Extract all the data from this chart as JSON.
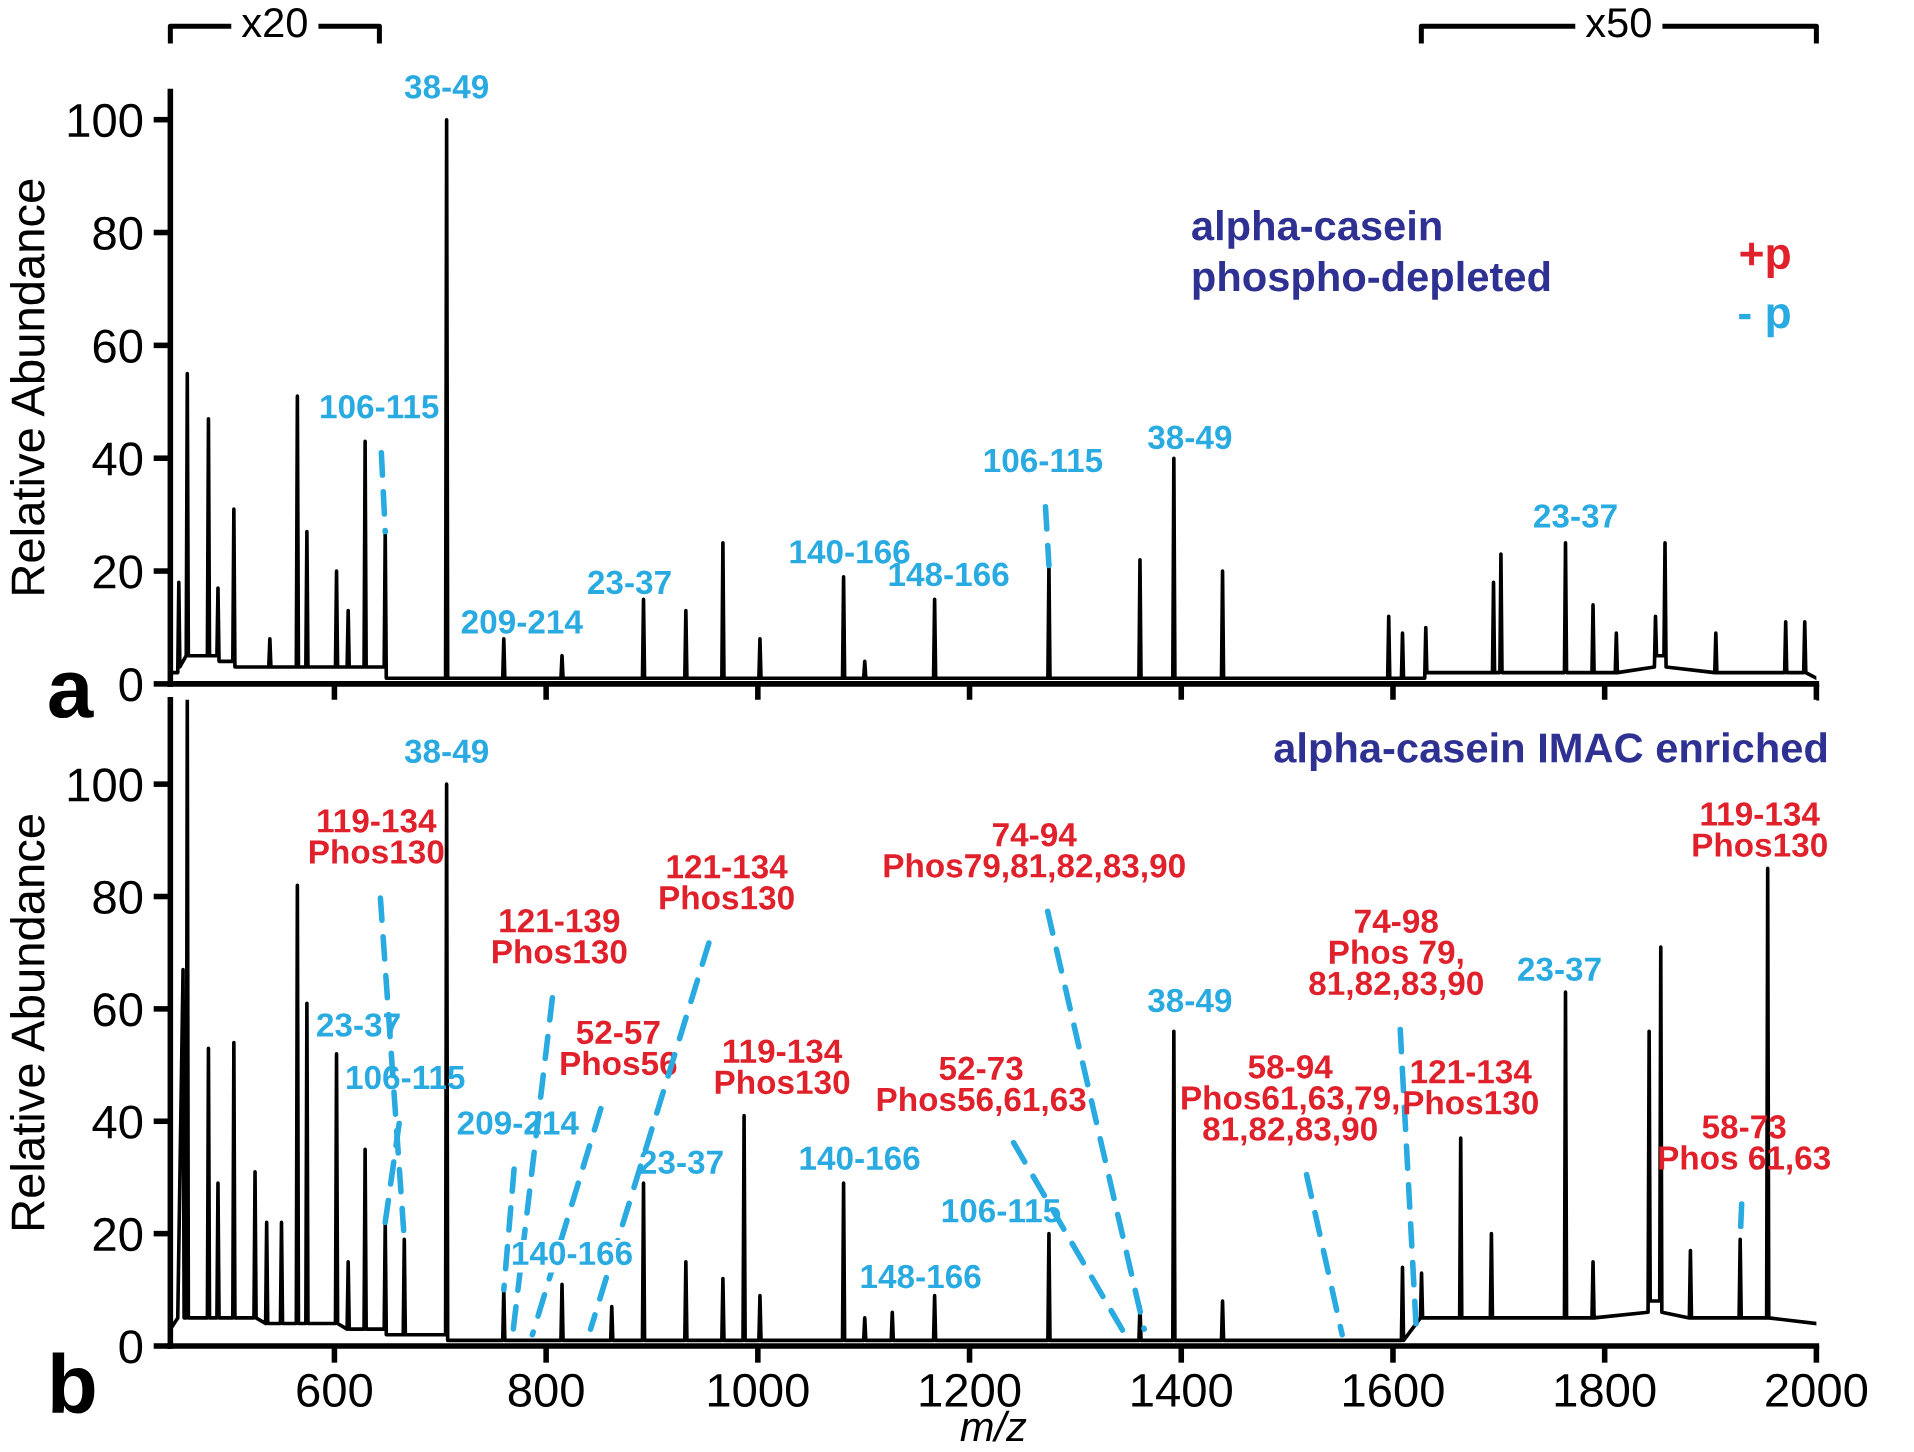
{
  "chart_data": [
    {
      "type": "line",
      "title": "alpha-casein\nphospho-depleted",
      "ylabel": "Relative Abundance",
      "tick_labels": "y",
      "xlim": [
        445,
        2000
      ],
      "ylim": [
        0,
        105
      ],
      "xticks": [
        600,
        800,
        1000,
        1200,
        1400,
        1600,
        1800,
        2000
      ],
      "yticks": [
        0,
        20,
        40,
        60,
        80,
        100
      ],
      "x": [
        445,
        452,
        453,
        454,
        460,
        461,
        462,
        480,
        481,
        482,
        489,
        490,
        491,
        504,
        505,
        506,
        538,
        539,
        540,
        564,
        565,
        566,
        573,
        574,
        575,
        601,
        602,
        603,
        612,
        613,
        614,
        628,
        629,
        630,
        647,
        648,
        649,
        705,
        706,
        707,
        759,
        760,
        761,
        814,
        815,
        816,
        891,
        892,
        893,
        931,
        932,
        933,
        966,
        967,
        968,
        1001,
        1002,
        1003,
        1080,
        1081,
        1082,
        1100,
        1101,
        1102,
        1166,
        1167,
        1168,
        1274,
        1275,
        1276,
        1360,
        1361,
        1362,
        1392,
        1393,
        1394,
        1438,
        1439,
        1440,
        1595,
        1596,
        1597,
        1608,
        1609,
        1610,
        1630,
        1631,
        1632,
        1694,
        1695,
        1696,
        1701,
        1702,
        1703,
        1762,
        1763,
        1764,
        1788,
        1789,
        1790,
        1810,
        1811,
        1812,
        1847,
        1848,
        1849,
        1856,
        1857,
        1858,
        1904,
        1905,
        1906,
        1970,
        1971,
        1972,
        1988,
        1989,
        1990,
        2000
      ],
      "series": [
        {
          "color": "#000000",
          "values": [
            2,
            2,
            18,
            3,
            5,
            55,
            5,
            5,
            47,
            5,
            5,
            17,
            4,
            4,
            31,
            3,
            3,
            8,
            3,
            3,
            51,
            3,
            3,
            27,
            3,
            3,
            20,
            3,
            3,
            13,
            3,
            3,
            43,
            3,
            3,
            27,
            1,
            1,
            100,
            1,
            1,
            8,
            1,
            1,
            5,
            1,
            1,
            15,
            1,
            1,
            13,
            1,
            1,
            25,
            1,
            1,
            8,
            1,
            1,
            19,
            1,
            1,
            4,
            1,
            1,
            15,
            1,
            1,
            21,
            1,
            1,
            22,
            1,
            1,
            40,
            1,
            1,
            20,
            1,
            1,
            12,
            1,
            1,
            9,
            1,
            1,
            10,
            2,
            2,
            18,
            2,
            2,
            23,
            2,
            2,
            25,
            2,
            2,
            14,
            2,
            2,
            9,
            2,
            3,
            12,
            5,
            5,
            25,
            3,
            2,
            9,
            2,
            2,
            11,
            2,
            2,
            11,
            2,
            1
          ]
        }
      ],
      "annotations": [
        {
          "text": "38-49",
          "x": 706,
          "y": 100
        },
        {
          "text": "106-115",
          "x": 648,
          "y": 27
        },
        {
          "text": "209-214",
          "x": 760,
          "y": 8
        },
        {
          "text": "23-37",
          "x": 892,
          "y": 15
        },
        {
          "text": "140-166",
          "x": 1081,
          "y": 19
        },
        {
          "text": "148-166",
          "x": 1167,
          "y": 15
        },
        {
          "text": "106-115",
          "x": 1275,
          "y": 21
        },
        {
          "text": "38-49",
          "x": 1393,
          "y": 40
        },
        {
          "text": "23-37",
          "x": 1763,
          "y": 25
        },
        "+p",
        "- p",
        "a",
        "x20",
        "x50"
      ]
    },
    {
      "type": "line",
      "title": "alpha-casein IMAC enriched",
      "xlabel": "m/z",
      "ylabel": "Relative Abundance",
      "xlim": [
        445,
        2000
      ],
      "ylim": [
        0,
        115
      ],
      "xticks": [
        600,
        800,
        1000,
        1200,
        1400,
        1600,
        1800,
        2000
      ],
      "yticks": [
        0,
        20,
        40,
        60,
        80,
        100
      ],
      "x": [
        445,
        452,
        457,
        458,
        460,
        461,
        462,
        480,
        481,
        482,
        489,
        490,
        491,
        504,
        505,
        506,
        524,
        525,
        526,
        535,
        536,
        537,
        549,
        550,
        551,
        564,
        565,
        566,
        573,
        574,
        575,
        601,
        602,
        603,
        612,
        613,
        614,
        628,
        629,
        630,
        647,
        648,
        649,
        665,
        666,
        667,
        705,
        706,
        707,
        759,
        760,
        761,
        814,
        815,
        816,
        861,
        862,
        863,
        891,
        892,
        893,
        931,
        932,
        933,
        966,
        967,
        968,
        986,
        987,
        988,
        1001,
        1002,
        1003,
        1080,
        1081,
        1082,
        1100,
        1101,
        1102,
        1126,
        1127,
        1128,
        1166,
        1167,
        1168,
        1274,
        1275,
        1276,
        1360,
        1361,
        1362,
        1392,
        1393,
        1394,
        1438,
        1439,
        1440,
        1608,
        1609,
        1610,
        1626,
        1627,
        1628,
        1663,
        1664,
        1665,
        1692,
        1693,
        1694,
        1762,
        1763,
        1764,
        1788,
        1789,
        1790,
        1841,
        1842,
        1843,
        1852,
        1853,
        1854,
        1880,
        1881,
        1882,
        1927,
        1928,
        1929,
        1953,
        1954,
        1955,
        2000
      ],
      "series": [
        {
          "color": "#000000",
          "values": [
            3,
            5,
            67,
            5,
            5,
            115,
            5,
            5,
            53,
            5,
            5,
            29,
            5,
            5,
            54,
            5,
            5,
            31,
            5,
            4,
            22,
            4,
            4,
            22,
            4,
            4,
            82,
            4,
            4,
            61,
            4,
            4,
            52,
            4,
            3,
            15,
            3,
            3,
            35,
            3,
            3,
            22,
            2,
            2,
            19,
            2,
            2,
            100,
            1,
            1,
            10,
            1,
            1,
            11,
            1,
            1,
            7,
            1,
            1,
            29,
            1,
            1,
            15,
            1,
            1,
            12,
            1,
            1,
            41,
            1,
            1,
            9,
            1,
            1,
            29,
            1,
            1,
            5,
            1,
            1,
            6,
            1,
            1,
            9,
            1,
            1,
            20,
            1,
            1,
            7,
            1,
            1,
            56,
            1,
            1,
            8,
            1,
            1,
            14,
            1,
            5,
            13,
            5,
            5,
            37,
            5,
            5,
            20,
            5,
            5,
            63,
            5,
            5,
            15,
            5,
            6,
            56,
            8,
            8,
            71,
            6,
            5,
            17,
            5,
            5,
            19,
            5,
            5,
            85,
            5,
            4
          ]
        }
      ],
      "annotations": [
        {
          "text": "38-49",
          "x": 706,
          "y": 100
        },
        {
          "text": "119-134\nPhos130",
          "x": 666,
          "y": 19
        },
        {
          "text": "23-37",
          "x": 602,
          "y": 52
        },
        {
          "text": "106-115",
          "x": 648,
          "y": 22
        },
        {
          "text": "209-214",
          "x": 760,
          "y": 10
        },
        {
          "text": "121-139\nPhos130",
          "x": 769,
          "y": 3
        },
        {
          "text": "52-57\nPhos56",
          "x": 787,
          "y": 2
        },
        {
          "text": "121-134\nPhos130",
          "x": 842,
          "y": 3
        },
        {
          "text": "140-166",
          "x": 815,
          "y": 11
        },
        {
          "text": "23-37",
          "x": 892,
          "y": 29
        },
        {
          "text": "119-134\nPhos130",
          "x": 987,
          "y": 41
        },
        {
          "text": "140-166",
          "x": 1081,
          "y": 29
        },
        {
          "text": "148-166",
          "x": 1167,
          "y": 9
        },
        {
          "text": "106-115",
          "x": 1275,
          "y": 20
        },
        {
          "text": "52-73\nPhos56,61,63",
          "x": 1347,
          "y": 2
        },
        {
          "text": "74-94\nPhos79,81,82,83,90",
          "x": 1365,
          "y": 3
        },
        {
          "text": "38-49",
          "x": 1393,
          "y": 56
        },
        {
          "text": "58-94\nPhos61,63,79,\n81,82,83,90",
          "x": 1552,
          "y": 2
        },
        {
          "text": "74-98\nPhos 79,\n81,82,83,90",
          "x": 1622,
          "y": 3
        },
        {
          "text": "121-134\nPhos130",
          "x": 1664,
          "y": 37
        },
        {
          "text": "23-37",
          "x": 1763,
          "y": 63
        },
        {
          "text": "119-134\nPhos130",
          "x": 1954,
          "y": 85
        },
        {
          "text": "58-73\nPhos 61,63",
          "x": 1928,
          "y": 19
        },
        "b"
      ]
    }
  ]
}
